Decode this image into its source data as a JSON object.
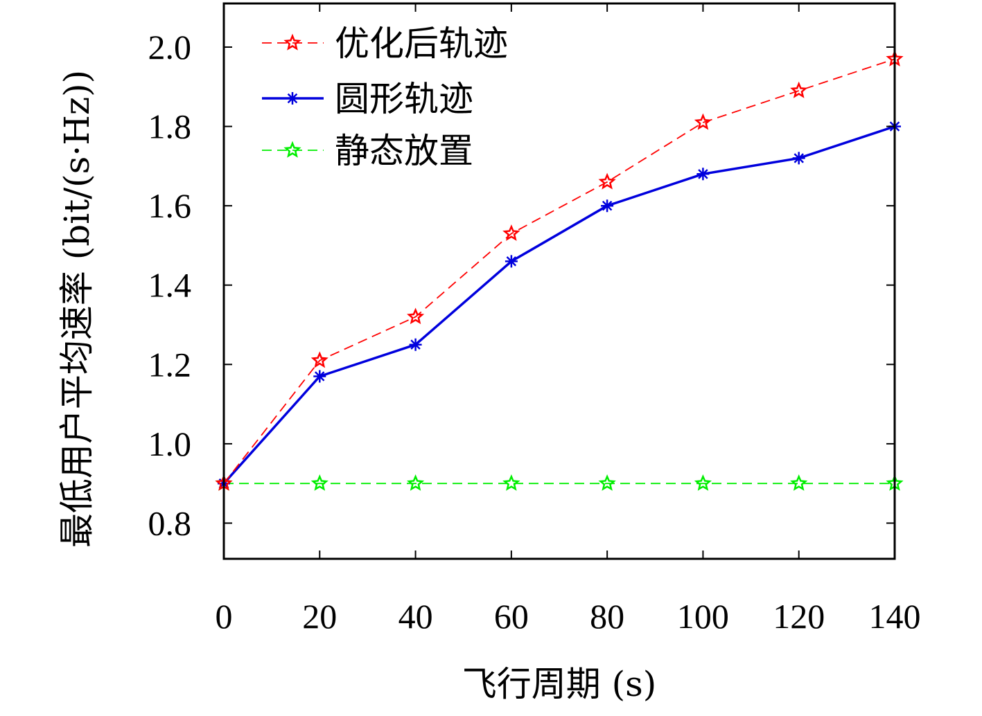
{
  "chart_data": {
    "type": "line",
    "title": "",
    "xlabel": "飞行周期 (s)",
    "ylabel": "最低用户平均速率 (bit/(s·Hz))",
    "x": [
      0,
      20,
      40,
      60,
      80,
      100,
      120,
      140
    ],
    "x_ticks": [
      "0",
      "20",
      "40",
      "60",
      "80",
      "100",
      "120",
      "140"
    ],
    "y_ticks": [
      "0.8",
      "1.0",
      "1.2",
      "1.4",
      "1.6",
      "1.8",
      "2.0"
    ],
    "xlim": [
      0,
      140
    ],
    "ylim": [
      0.71,
      2.11
    ],
    "grid": false,
    "legend_position": "top-left",
    "series": [
      {
        "name": "优化后轨迹",
        "values": [
          0.9,
          1.21,
          1.32,
          1.53,
          1.66,
          1.81,
          1.89,
          1.97
        ],
        "color": "#ff0000",
        "line": "dashed",
        "marker": "star",
        "stroke_weight": "thin"
      },
      {
        "name": "圆形轨迹",
        "values": [
          0.9,
          1.17,
          1.25,
          1.46,
          1.6,
          1.68,
          1.72,
          1.8
        ],
        "color": "#0000dd",
        "line": "solid",
        "marker": "asterisk",
        "stroke_weight": "thick"
      },
      {
        "name": "静态放置",
        "values": [
          0.9,
          0.9,
          0.9,
          0.9,
          0.9,
          0.9,
          0.9,
          0.9
        ],
        "color": "#00ee00",
        "line": "dashed",
        "marker": "star",
        "stroke_weight": "thin"
      }
    ]
  }
}
